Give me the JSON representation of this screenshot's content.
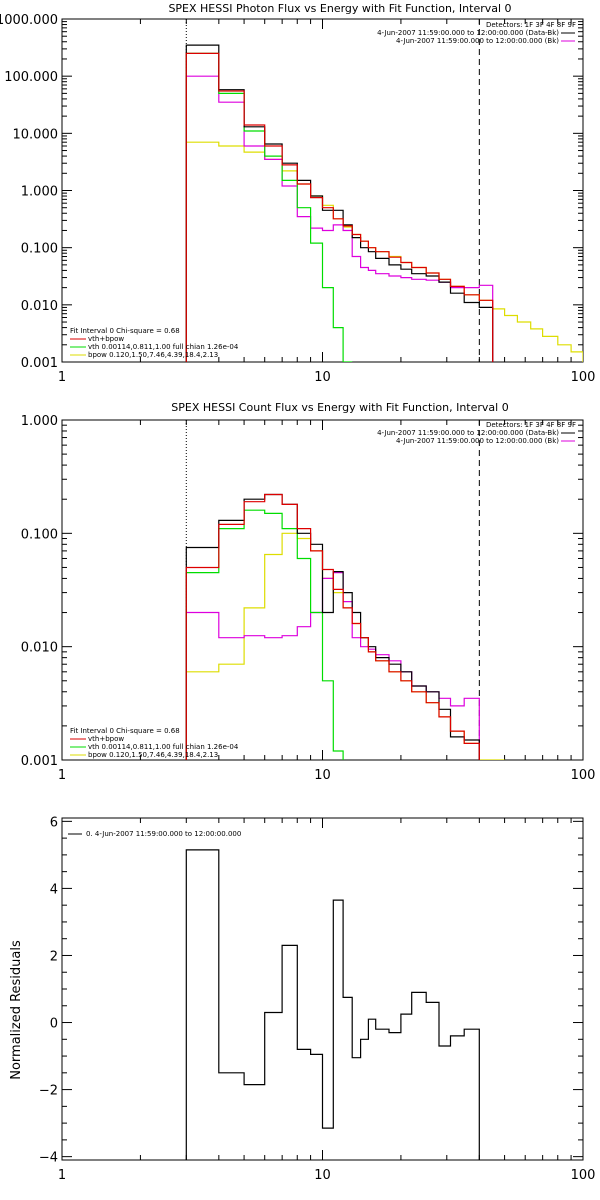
{
  "colors": {
    "data": "#000000",
    "fit_total": "#dd0000",
    "vth": "#00dd00",
    "bpow": "#dddd00",
    "background": "#dd00dd"
  },
  "chart_data": [
    {
      "type": "line",
      "title": "SPEX HESSI Photon Flux vs Energy with Fit Function, Interval 0",
      "xscale": "log",
      "yscale": "log",
      "xlim": [
        1,
        100
      ],
      "ylim": [
        0.001,
        1000
      ],
      "x_ticks": [
        "1",
        "10",
        "100"
      ],
      "y_ticks": [
        "0.001",
        "0.010",
        "0.100",
        "1.000",
        "10.000",
        "100.000",
        "1000.000"
      ],
      "legend_top_right": [
        "Detectors: 1F 3F 4F 8F 9F",
        "4-Jun-2007 11:59:00.000 to 12:00:00.000 (Data-Bk)",
        "4-Jun-2007 11:59:00.000 to 12:00:00.000 (Bk)"
      ],
      "legend_bottom_left": [
        "Fit Interval 0   Chi-square = 0.68",
        "vth+bpow",
        "vth 0.00114,0.811,1.00  full chian 1.26e-04",
        "bpow 0.120,1.50,7.46,4.39,18.4,2.13"
      ],
      "vlines": [
        {
          "x": 3,
          "style": "dotted"
        },
        {
          "x": 40,
          "style": "dashed"
        }
      ],
      "edges": [
        3,
        4,
        5,
        6,
        7,
        8,
        9,
        10,
        11,
        12,
        13,
        14,
        15,
        16,
        18,
        20,
        22,
        25,
        28,
        31,
        35,
        40,
        45,
        50,
        56,
        63,
        70,
        80,
        90,
        100
      ],
      "series": [
        {
          "name": "Data-Bk",
          "color_key": "data",
          "x_range": [
            3,
            40
          ],
          "values": [
            350,
            58,
            13,
            6.5,
            3,
            1.5,
            0.8,
            0.45,
            0.45,
            0.25,
            0.15,
            0.1,
            0.085,
            0.065,
            0.05,
            0.042,
            0.035,
            0.032,
            0.025,
            0.016,
            0.011,
            0.009
          ]
        },
        {
          "name": "vth+bpow",
          "color_key": "fit_total",
          "x_range": [
            3,
            40
          ],
          "values": [
            250,
            55,
            14,
            6,
            2.8,
            1.3,
            0.75,
            0.5,
            0.32,
            0.24,
            0.17,
            0.13,
            0.1,
            0.085,
            0.068,
            0.055,
            0.045,
            0.036,
            0.028,
            0.021,
            0.015,
            0.012
          ]
        },
        {
          "name": "vth",
          "color_key": "vth",
          "x_range": [
            3,
            12
          ],
          "values": [
            250,
            50,
            11,
            4,
            1.5,
            0.5,
            0.12,
            0.02,
            0.004,
            0.0008
          ]
        },
        {
          "name": "bpow",
          "color_key": "bpow",
          "x_range": [
            3,
            100
          ],
          "values": [
            7,
            6,
            4.7,
            3.5,
            2.2,
            1.3,
            0.8,
            0.55,
            0.32,
            0.23,
            0.17,
            0.13,
            0.1,
            0.085,
            0.07,
            0.055,
            0.045,
            0.036,
            0.028,
            0.021,
            0.015,
            0.012,
            0.0085,
            0.0065,
            0.005,
            0.0038,
            0.0028,
            0.002,
            0.0015
          ]
        },
        {
          "name": "Bk",
          "color_key": "background",
          "x_range": [
            3,
            40
          ],
          "values": [
            100,
            35,
            6,
            3.5,
            1.2,
            0.35,
            0.22,
            0.2,
            0.25,
            0.2,
            0.07,
            0.045,
            0.04,
            0.035,
            0.032,
            0.03,
            0.028,
            0.027,
            0.025,
            0.02,
            0.02,
            0.022
          ]
        }
      ]
    },
    {
      "type": "line",
      "title": "SPEX HESSI Count Flux vs Energy with Fit Function, Interval 0",
      "xscale": "log",
      "yscale": "log",
      "xlim": [
        1,
        100
      ],
      "ylim": [
        0.001,
        1
      ],
      "x_ticks": [
        "1",
        "10",
        "100"
      ],
      "y_ticks": [
        "0.001",
        "0.010",
        "0.100",
        "1.000"
      ],
      "legend_top_right": [
        "Detectors: 1F 3F 4F 8F 9F",
        "4-Jun-2007 11:59:00.000 to 12:00:00.000 (Data-Bk)",
        "4-Jun-2007 11:59:00.000 to 12:00:00.000 (Bk)"
      ],
      "legend_bottom_left": [
        "Fit Interval 0   Chi-square = 0.68",
        "vth+bpow",
        "vth 0.00114,0.811,1.00  full chian 1.26e-04",
        "bpow 0.120,1.50,7.46,4.39,18.4,2.13"
      ],
      "vlines": [
        {
          "x": 3,
          "style": "dotted"
        },
        {
          "x": 40,
          "style": "dashed"
        }
      ],
      "edges": [
        3,
        4,
        5,
        6,
        7,
        8,
        9,
        10,
        11,
        12,
        13,
        14,
        15,
        16,
        18,
        20,
        22,
        25,
        28,
        31,
        35,
        40,
        45,
        50
      ],
      "series": [
        {
          "name": "Data-Bk",
          "color_key": "data",
          "x_range": [
            3,
            40
          ],
          "values": [
            0.075,
            0.13,
            0.2,
            0.22,
            0.18,
            0.1,
            0.08,
            0.02,
            0.046,
            0.03,
            0.02,
            0.012,
            0.01,
            0.008,
            0.007,
            0.006,
            0.0045,
            0.004,
            0.0028,
            0.0016,
            0.0015
          ]
        },
        {
          "name": "vth+bpow",
          "color_key": "fit_total",
          "x_range": [
            3,
            40
          ],
          "values": [
            0.05,
            0.12,
            0.19,
            0.22,
            0.18,
            0.11,
            0.07,
            0.048,
            0.032,
            0.022,
            0.016,
            0.012,
            0.009,
            0.0075,
            0.006,
            0.005,
            0.004,
            0.0032,
            0.0024,
            0.0018,
            0.0014
          ]
        },
        {
          "name": "vth",
          "color_key": "vth",
          "x_range": [
            3,
            11
          ],
          "values": [
            0.045,
            0.11,
            0.16,
            0.15,
            0.11,
            0.06,
            0.02,
            0.005,
            0.0012
          ]
        },
        {
          "name": "bpow",
          "color_key": "bpow",
          "x_range": [
            3,
            50
          ],
          "values": [
            0.006,
            0.007,
            0.022,
            0.065,
            0.1,
            0.09,
            0.07,
            0.04,
            0.03,
            0.022,
            0.016,
            0.012,
            0.009,
            0.0075,
            0.006,
            0.005,
            0.004,
            0.0032,
            0.0024,
            0.0018,
            0.0014,
            0.0009,
            0.0006
          ]
        },
        {
          "name": "Bk",
          "color_key": "background",
          "x_range": [
            3,
            40
          ],
          "values": [
            0.02,
            0.012,
            0.0125,
            0.012,
            0.0125,
            0.015,
            0.02,
            0.04,
            0.045,
            0.025,
            0.012,
            0.01,
            0.0095,
            0.0085,
            0.0075,
            0.006,
            0.0045,
            0.004,
            0.0035,
            0.003,
            0.0035
          ]
        }
      ]
    },
    {
      "type": "line",
      "title": "",
      "xscale": "log",
      "yscale": "linear",
      "xlim": [
        1,
        100
      ],
      "ylim": [
        -4.1,
        6.1
      ],
      "x_ticks": [
        "1",
        "10",
        "100"
      ],
      "y_ticks": [
        "-4",
        "-2",
        "0",
        "2",
        "4",
        "6"
      ],
      "ylabel": "Normalized Residuals",
      "legend": [
        "0. 4-Jun-2007 11:59:00.000 to 12:00:00.000"
      ],
      "edges": [
        3,
        4,
        5,
        6,
        7,
        8,
        9,
        10,
        11,
        12,
        13,
        14,
        15,
        16,
        18,
        20,
        22,
        25,
        28,
        31,
        35,
        40
      ],
      "series": [
        {
          "name": "0. 4-Jun-2007 11:59:00.000 to 12:00:00.000",
          "color_key": "data",
          "values": [
            5.15,
            -1.5,
            -1.85,
            0.3,
            2.3,
            -0.8,
            -0.95,
            -3.15,
            3.65,
            0.75,
            -1.05,
            -0.5,
            0.1,
            -0.2,
            -0.3,
            0.25,
            0.9,
            0.6,
            -0.7,
            -0.4,
            -0.2
          ]
        }
      ]
    }
  ]
}
